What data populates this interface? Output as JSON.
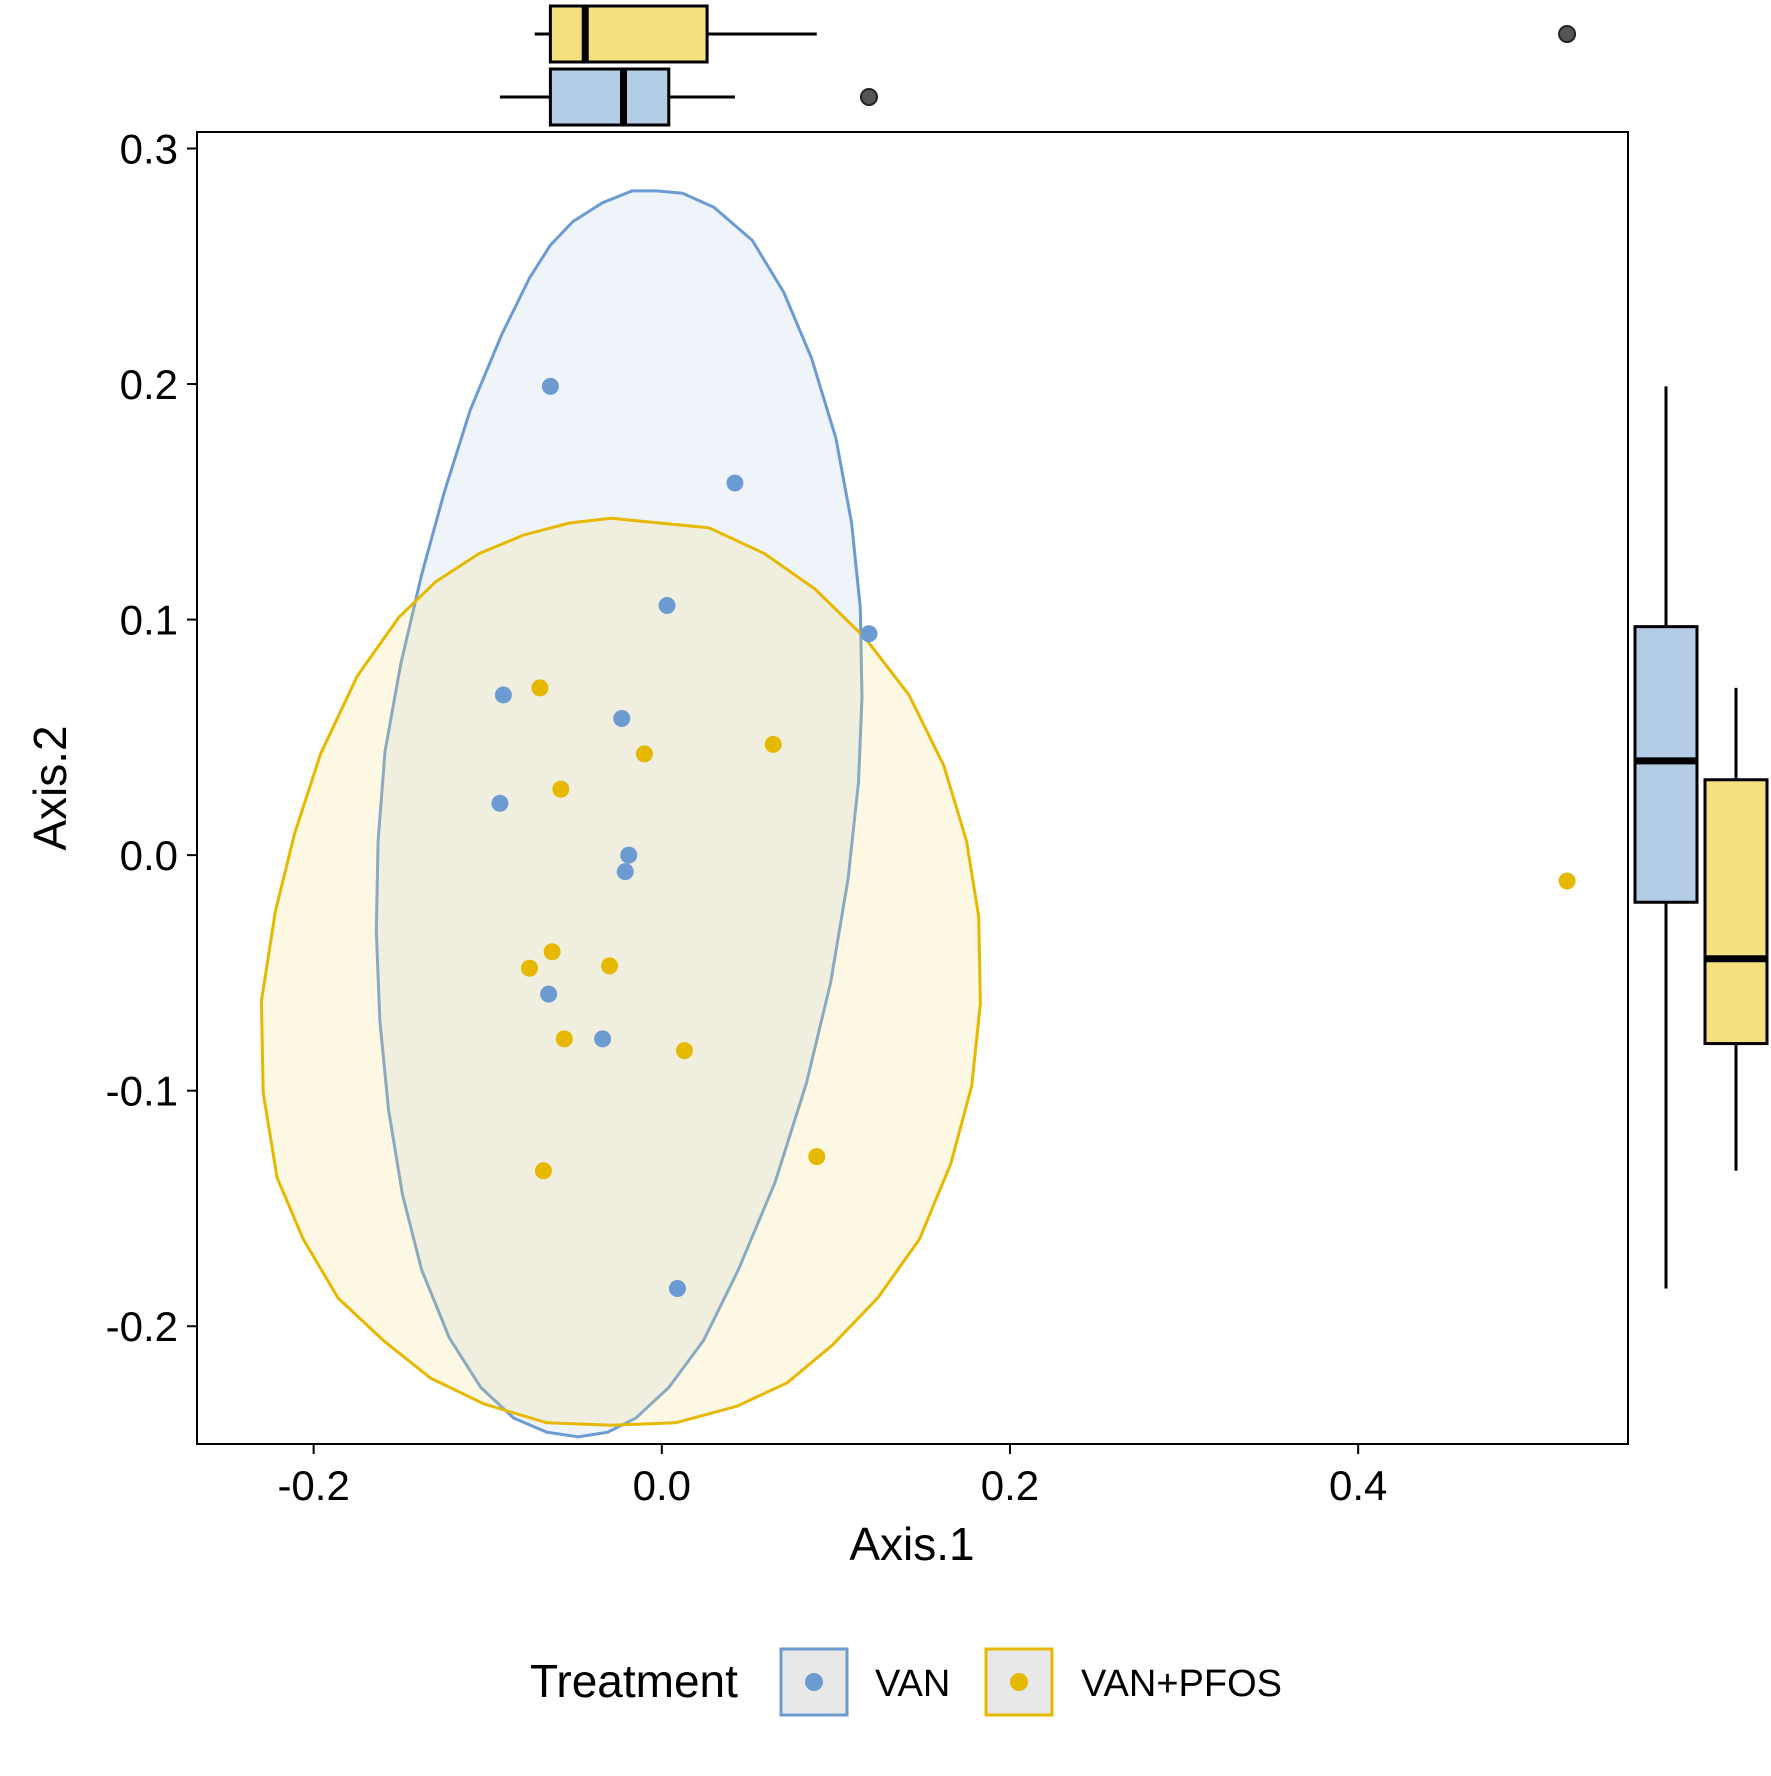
{
  "chart_data": {
    "type": "scatter",
    "xlabel": "Axis.1",
    "ylabel": "Axis.2",
    "xlim": [
      -0.267,
      0.555
    ],
    "ylim": [
      -0.25,
      0.307
    ],
    "x_ticks": [
      -0.2,
      0.0,
      0.2,
      0.4
    ],
    "x_tick_labels": [
      "-0.2",
      "0.0",
      "0.2",
      "0.4"
    ],
    "y_ticks": [
      -0.2,
      -0.1,
      0.0,
      0.1,
      0.2,
      0.3
    ],
    "y_tick_labels": [
      "-0.2",
      "-0.1",
      "0.0",
      "0.1",
      "0.2",
      "0.3"
    ],
    "grid": false,
    "legend": {
      "title": "Treatment",
      "position": "bottom"
    },
    "series": [
      {
        "name": "VAN",
        "color": "#6b9bd1",
        "fill": "#b4cde7",
        "points": [
          {
            "x": -0.064,
            "y": 0.199
          },
          {
            "x": 0.042,
            "y": 0.158
          },
          {
            "x": 0.003,
            "y": 0.106
          },
          {
            "x": 0.119,
            "y": 0.094
          },
          {
            "x": -0.091,
            "y": 0.068
          },
          {
            "x": -0.023,
            "y": 0.058
          },
          {
            "x": -0.093,
            "y": 0.022
          },
          {
            "x": -0.019,
            "y": 0.0
          },
          {
            "x": -0.021,
            "y": -0.007
          },
          {
            "x": -0.065,
            "y": -0.059
          },
          {
            "x": -0.034,
            "y": -0.078
          },
          {
            "x": 0.009,
            "y": -0.184
          }
        ],
        "ellipse": [
          [
            -0.003,
            0.282
          ],
          [
            -0.017,
            0.282
          ],
          [
            -0.034,
            0.277
          ],
          [
            -0.051,
            0.269
          ],
          [
            -0.064,
            0.259
          ],
          [
            -0.076,
            0.245
          ],
          [
            -0.092,
            0.221
          ],
          [
            -0.11,
            0.189
          ],
          [
            -0.125,
            0.154
          ],
          [
            -0.138,
            0.119
          ],
          [
            -0.15,
            0.081
          ],
          [
            -0.159,
            0.044
          ],
          [
            -0.163,
            0.006
          ],
          [
            -0.164,
            -0.032
          ],
          [
            -0.162,
            -0.07
          ],
          [
            -0.157,
            -0.108
          ],
          [
            -0.149,
            -0.144
          ],
          [
            -0.138,
            -0.176
          ],
          [
            -0.122,
            -0.205
          ],
          [
            -0.104,
            -0.226
          ],
          [
            -0.085,
            -0.239
          ],
          [
            -0.066,
            -0.245
          ],
          [
            -0.048,
            -0.247
          ],
          [
            -0.031,
            -0.245
          ],
          [
            -0.015,
            -0.239
          ],
          [
            0.004,
            -0.226
          ],
          [
            0.024,
            -0.206
          ],
          [
            0.044,
            -0.176
          ],
          [
            0.065,
            -0.139
          ],
          [
            0.083,
            -0.097
          ],
          [
            0.097,
            -0.054
          ],
          [
            0.107,
            -0.01
          ],
          [
            0.113,
            0.031
          ],
          [
            0.115,
            0.067
          ],
          [
            0.114,
            0.105
          ],
          [
            0.109,
            0.141
          ],
          [
            0.1,
            0.177
          ],
          [
            0.086,
            0.211
          ],
          [
            0.07,
            0.239
          ],
          [
            0.052,
            0.261
          ],
          [
            0.03,
            0.275
          ],
          [
            0.012,
            0.281
          ]
        ]
      },
      {
        "name": "VAN+PFOS",
        "color": "#e6b800",
        "fill": "#f5e080",
        "points": [
          {
            "x": -0.07,
            "y": 0.071
          },
          {
            "x": -0.01,
            "y": 0.043
          },
          {
            "x": 0.064,
            "y": 0.047
          },
          {
            "x": -0.058,
            "y": 0.028
          },
          {
            "x": -0.063,
            "y": -0.041
          },
          {
            "x": -0.076,
            "y": -0.048
          },
          {
            "x": -0.03,
            "y": -0.047
          },
          {
            "x": -0.056,
            "y": -0.078
          },
          {
            "x": 0.013,
            "y": -0.083
          },
          {
            "x": -0.068,
            "y": -0.134
          },
          {
            "x": 0.089,
            "y": -0.128
          },
          {
            "x": 0.52,
            "y": -0.011
          }
        ],
        "ellipse": [
          [
            -0.029,
            0.143
          ],
          [
            -0.053,
            0.141
          ],
          [
            -0.079,
            0.136
          ],
          [
            -0.105,
            0.128
          ],
          [
            -0.13,
            0.116
          ],
          [
            -0.151,
            0.101
          ],
          [
            -0.175,
            0.076
          ],
          [
            -0.196,
            0.043
          ],
          [
            -0.211,
            0.009
          ],
          [
            -0.222,
            -0.024
          ],
          [
            -0.23,
            -0.062
          ],
          [
            -0.229,
            -0.101
          ],
          [
            -0.221,
            -0.137
          ],
          [
            -0.206,
            -0.163
          ],
          [
            -0.186,
            -0.188
          ],
          [
            -0.16,
            -0.206
          ],
          [
            -0.133,
            -0.222
          ],
          [
            -0.102,
            -0.233
          ],
          [
            -0.066,
            -0.241
          ],
          [
            -0.029,
            -0.242
          ],
          [
            0.008,
            -0.241
          ],
          [
            0.043,
            -0.234
          ],
          [
            0.072,
            -0.224
          ],
          [
            0.098,
            -0.208
          ],
          [
            0.124,
            -0.188
          ],
          [
            0.148,
            -0.163
          ],
          [
            0.166,
            -0.131
          ],
          [
            0.178,
            -0.098
          ],
          [
            0.183,
            -0.063
          ],
          [
            0.182,
            -0.026
          ],
          [
            0.175,
            0.006
          ],
          [
            0.162,
            0.038
          ],
          [
            0.142,
            0.068
          ],
          [
            0.117,
            0.092
          ],
          [
            0.088,
            0.113
          ],
          [
            0.059,
            0.128
          ],
          [
            0.027,
            0.139
          ]
        ]
      }
    ],
    "marginal_boxplots": {
      "top_axis": "Axis.1",
      "right_axis": "Axis.2",
      "top": [
        {
          "name": "VAN+PFOS",
          "whisker_low": -0.073,
          "q1": -0.064,
          "median": -0.044,
          "q3": 0.026,
          "whisker_high": 0.089,
          "outliers": [
            0.52
          ]
        },
        {
          "name": "VAN",
          "whisker_low": -0.093,
          "q1": -0.064,
          "median": -0.022,
          "q3": 0.004,
          "whisker_high": 0.042,
          "outliers": [
            0.119
          ]
        }
      ],
      "right": [
        {
          "name": "VAN",
          "whisker_low": -0.184,
          "q1": -0.02,
          "median": 0.04,
          "q3": 0.097,
          "whisker_high": 0.199,
          "outliers": []
        },
        {
          "name": "VAN+PFOS",
          "whisker_low": -0.134,
          "q1": -0.08,
          "median": -0.044,
          "q3": 0.032,
          "whisker_high": 0.071,
          "outliers": []
        }
      ]
    }
  }
}
